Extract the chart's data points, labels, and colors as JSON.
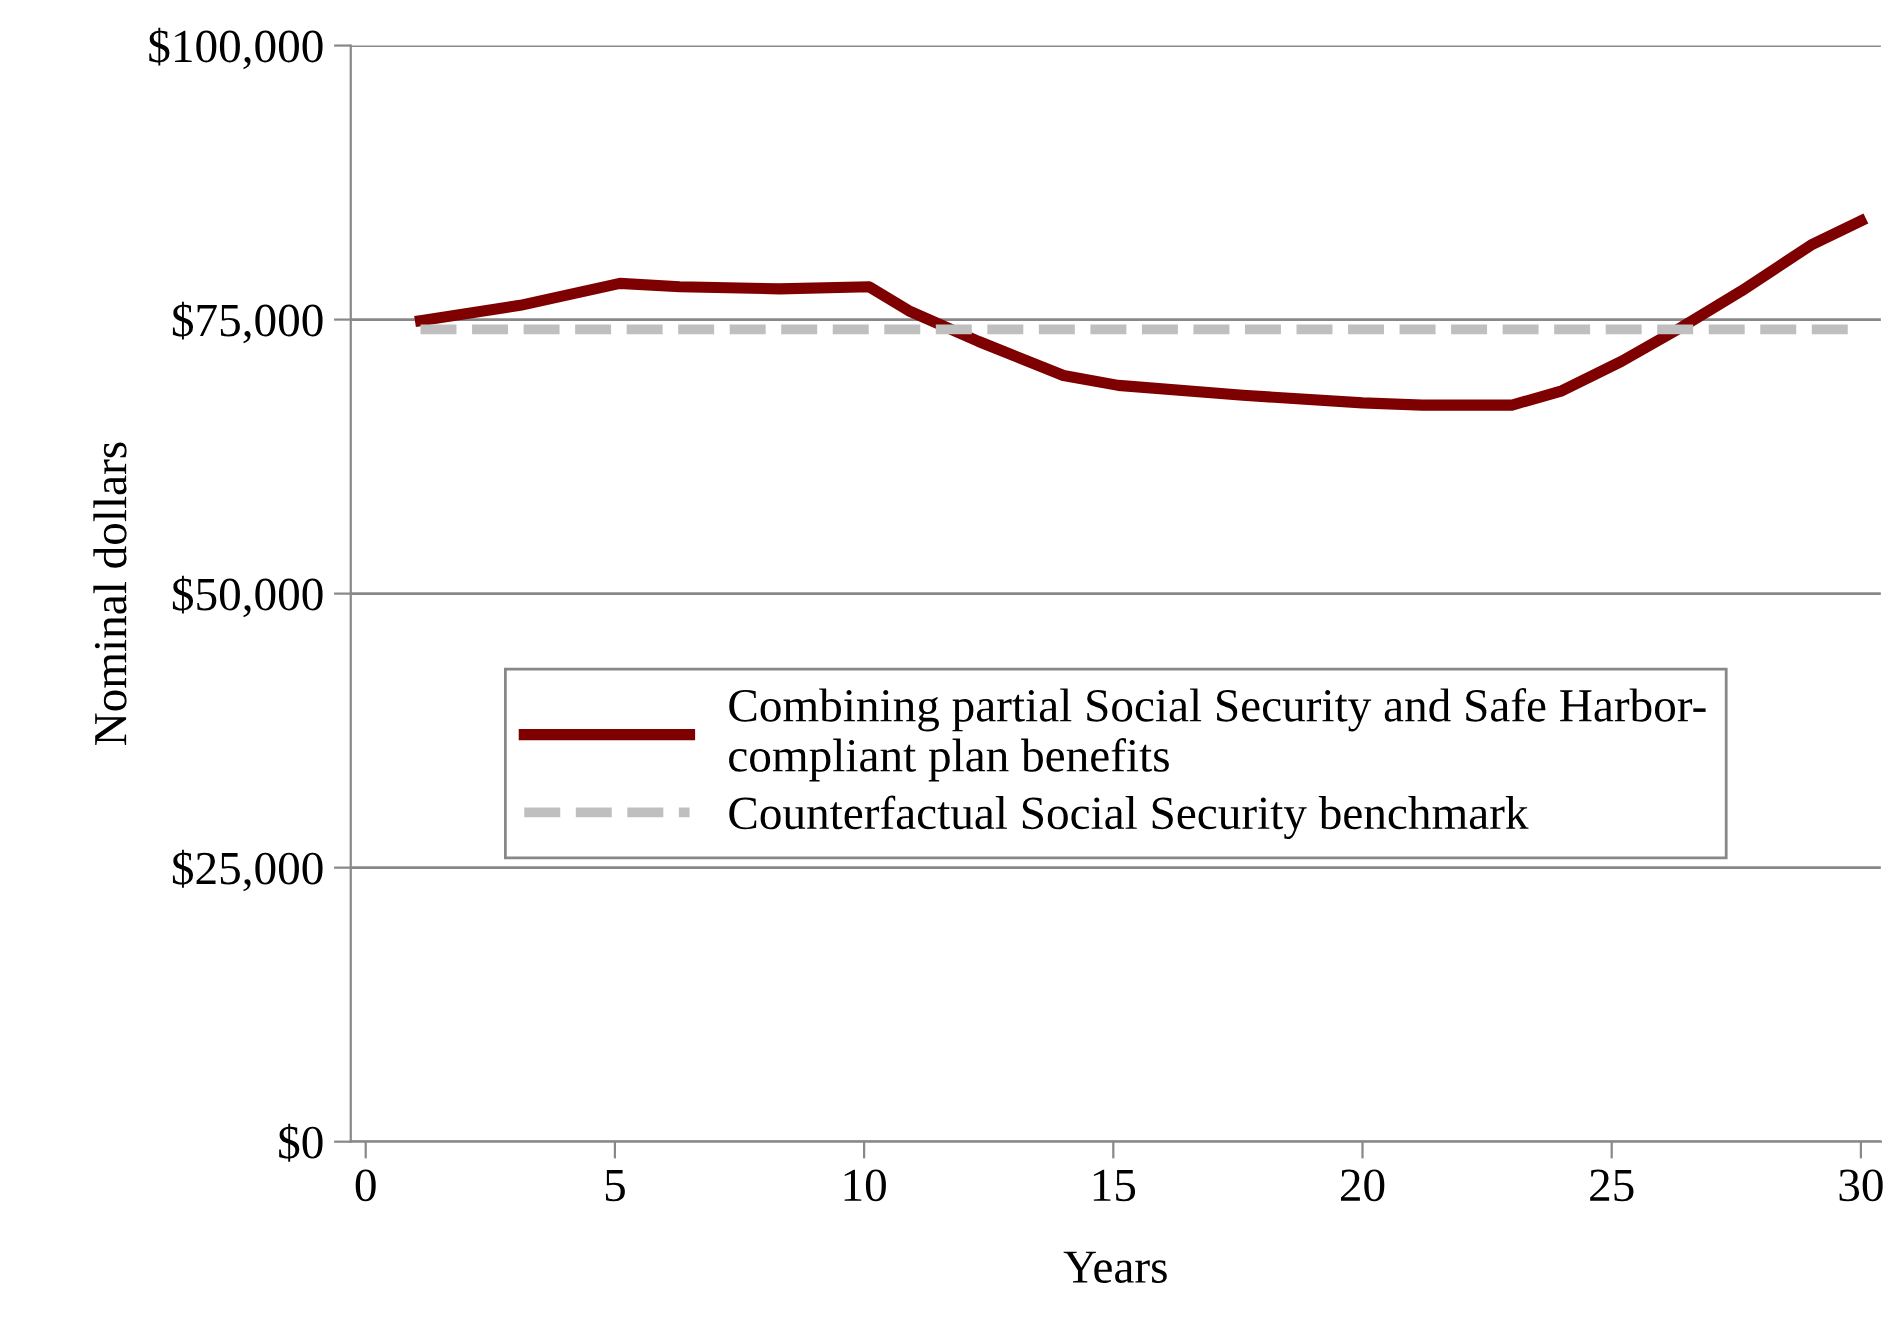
{
  "chart_data": {
    "type": "line",
    "xlabel": "Years",
    "ylabel": "Nominal dollars",
    "xlim": [
      -0.3,
      30.4
    ],
    "xticks": [
      0,
      5,
      10,
      15,
      20,
      25,
      30
    ],
    "ylim": [
      0,
      100000
    ],
    "yticks": [
      {
        "value": 0,
        "label": "$0"
      },
      {
        "value": 25000,
        "label": "$25,000"
      },
      {
        "value": 50000,
        "label": "$50,000"
      },
      {
        "value": 75000,
        "label": "$75,000"
      },
      {
        "value": 100000,
        "label": "$100,000"
      }
    ],
    "grid": "y",
    "legend": "center",
    "marker": "none",
    "series": [
      {
        "name": "Combining partial Social Security and Safe Harbor-\ncompliant plan benefits",
        "color": "#7f0000",
        "line_style": "solid",
        "x": [
          1.1,
          3.1,
          5.1,
          6.3,
          8.3,
          10.1,
          10.9,
          12.3,
          14.0,
          15.1,
          17.6,
          20.0,
          21.2,
          23.0,
          24.0,
          25.2,
          26.4,
          27.6,
          29.0,
          30.0
        ],
        "values": [
          74900,
          76300,
          78300,
          78000,
          77800,
          78000,
          75800,
          73000,
          69900,
          69000,
          68100,
          67400,
          67200,
          67200,
          68500,
          71200,
          74300,
          77600,
          81800,
          84000
        ]
      },
      {
        "name": "Counterfactual Social Security benchmark",
        "color": "#bfbfbf",
        "line_style": "dashed",
        "x": [
          1.1,
          30.0
        ],
        "values": [
          74100,
          74100
        ]
      }
    ]
  }
}
